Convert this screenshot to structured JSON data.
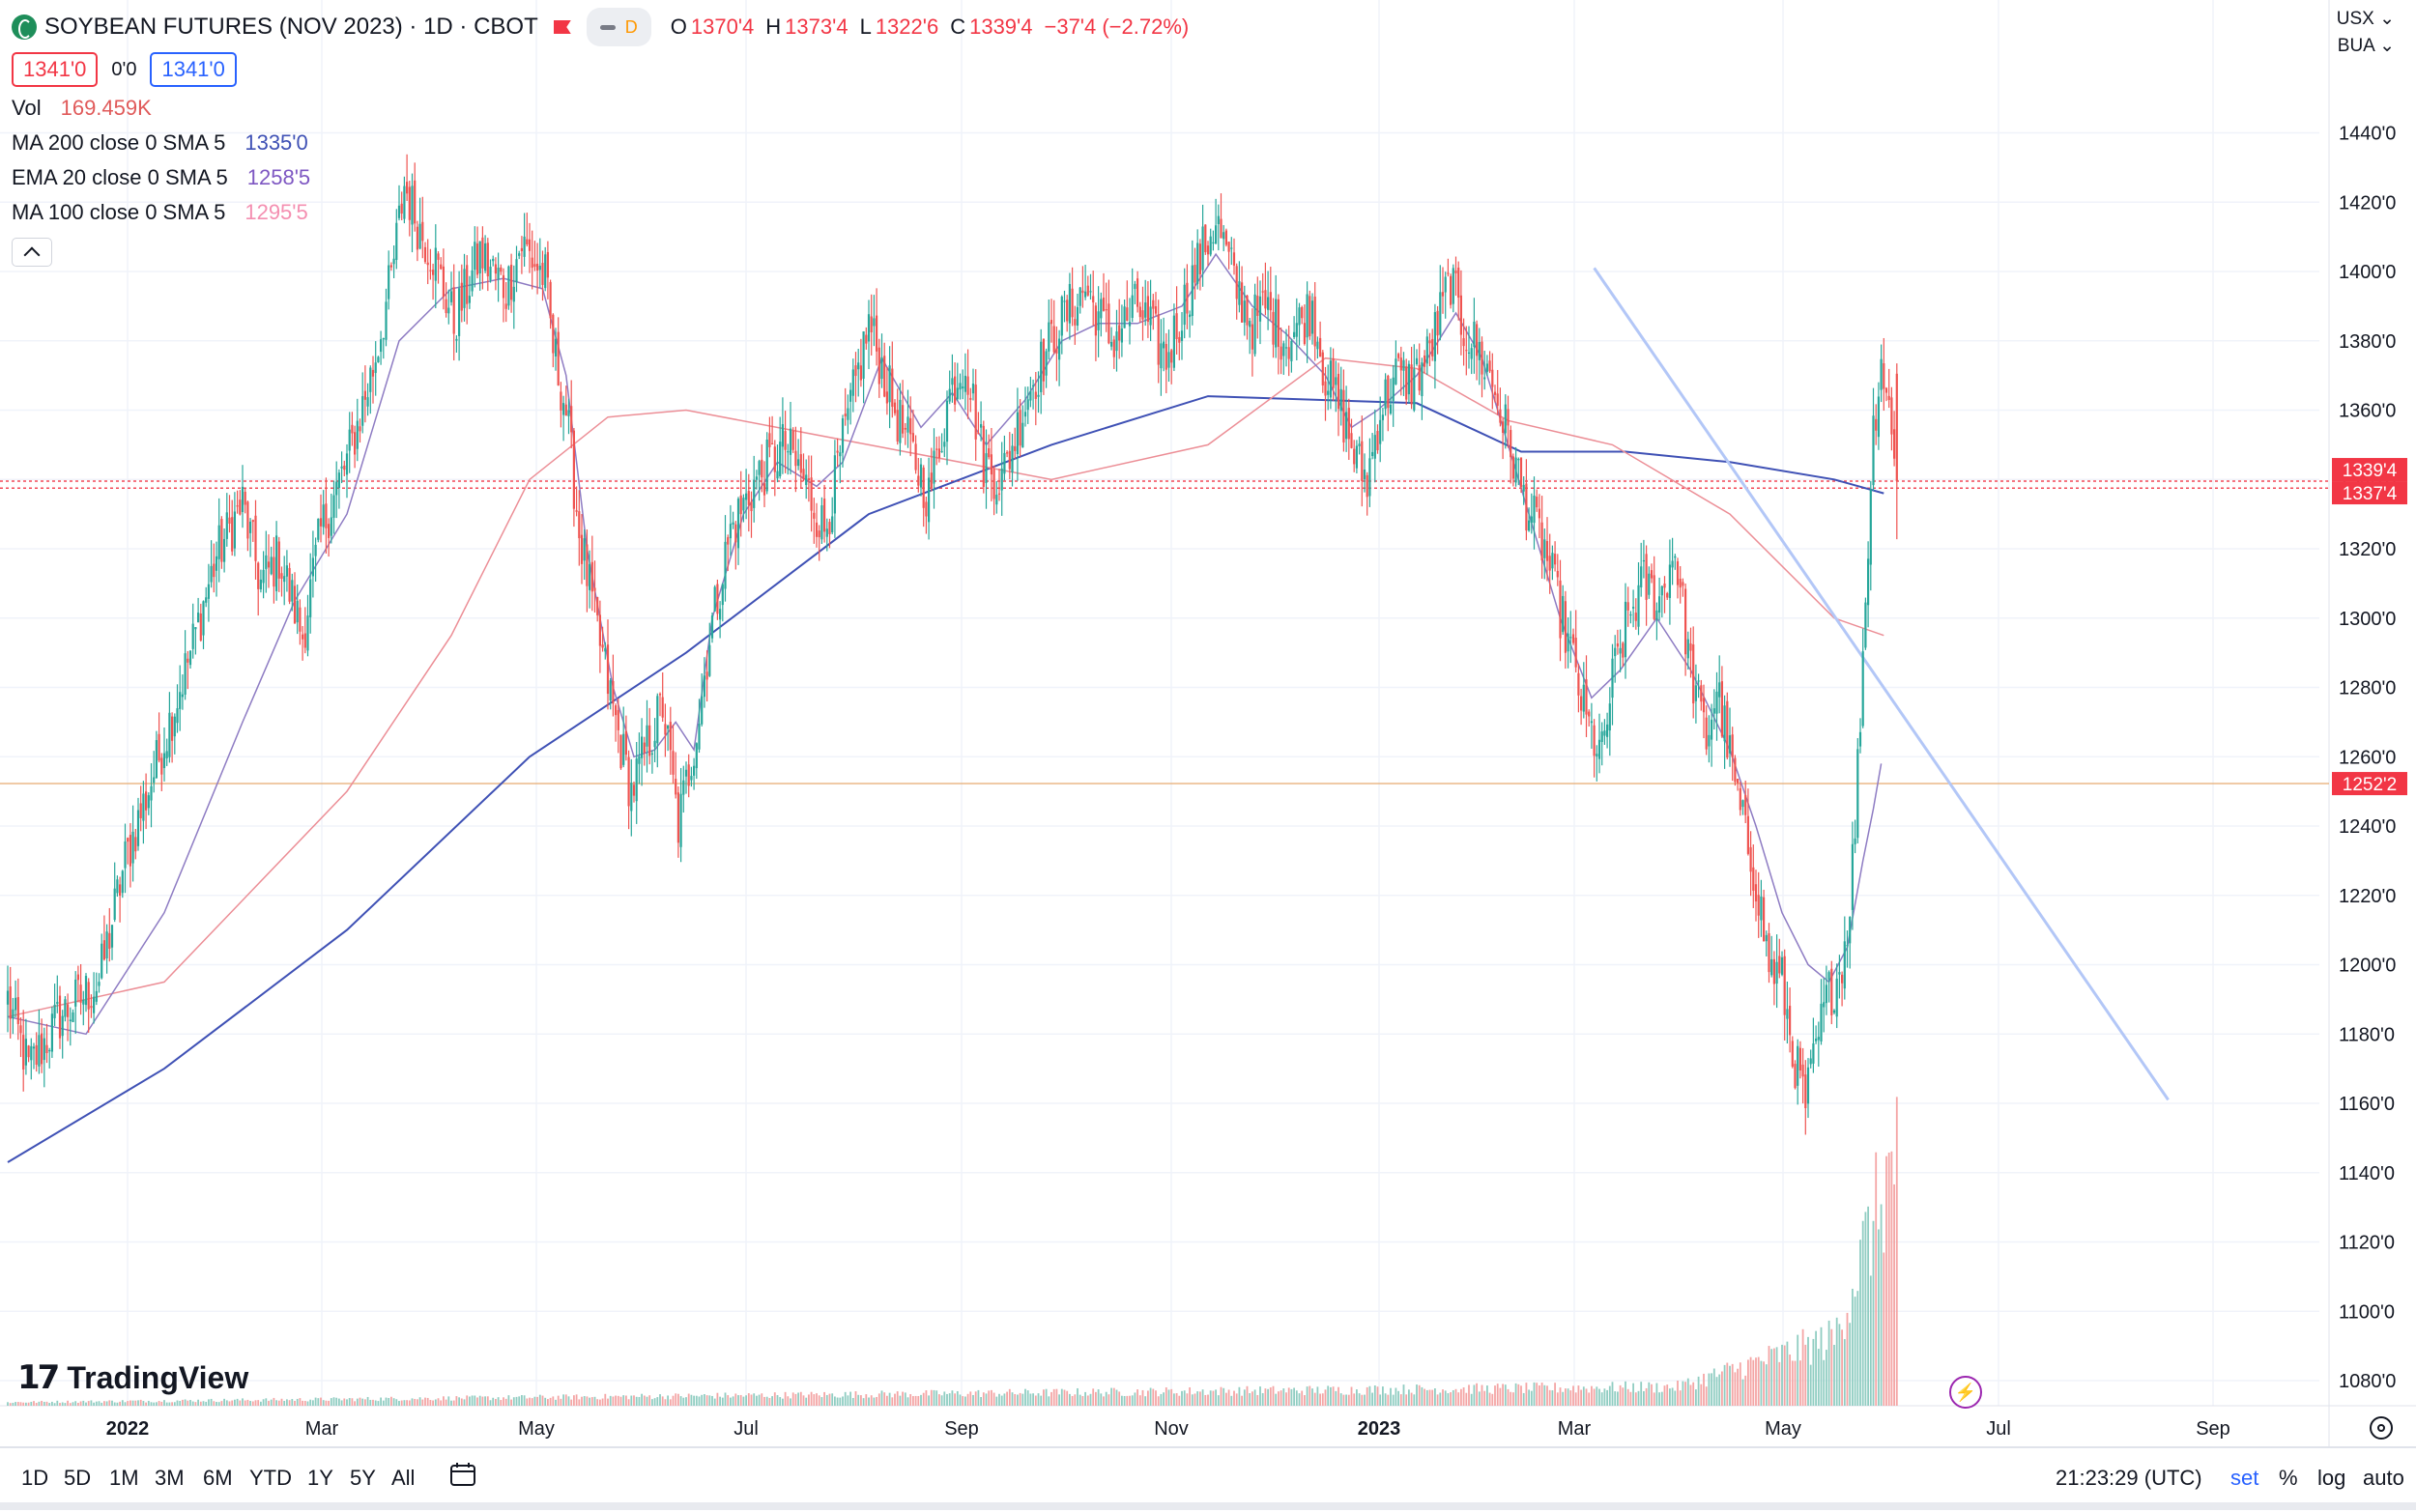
{
  "header": {
    "title": "SOYBEAN FUTURES (NOV 2023) · 1D · CBOT",
    "interval_badge": "D",
    "ohlc": [
      {
        "k": "O",
        "v": "1370'4"
      },
      {
        "k": "H",
        "v": "1373'4"
      },
      {
        "k": "L",
        "v": "1322'6"
      },
      {
        "k": "C",
        "v": "1339'4"
      },
      {
        "k": "",
        "v": "−37'4 (−2.72%)"
      }
    ],
    "sell_price": "1341'0",
    "spread": "0'0",
    "buy_price": "1341'0"
  },
  "indicators": [
    {
      "name": "Vol",
      "value": "169.459K",
      "color": "#e05a5a"
    },
    {
      "name": "MA 200 close 0 SMA 5",
      "value": "1335'0",
      "color": "#3f51b5"
    },
    {
      "name": "EMA 20 close 0 SMA 5",
      "value": "1258'5",
      "color": "#7e57c2"
    },
    {
      "name": "MA 100 close 0 SMA 5",
      "value": "1295'5",
      "color": "#f48fb1"
    }
  ],
  "top_right": {
    "currency": "USX",
    "unit": "BUA"
  },
  "price_labels": [
    {
      "value": "1339'4",
      "color": "#f23645"
    },
    {
      "value": "1337'4",
      "color": "#f23645"
    },
    {
      "value": "1252'2",
      "color": "#f23645"
    }
  ],
  "brand": "TradingView",
  "toolbar": {
    "timeframes": [
      "1D",
      "5D",
      "1M",
      "3M",
      "6M",
      "YTD",
      "1Y",
      "5Y",
      "All"
    ],
    "clock": "21:23:29 (UTC)",
    "set_label": "set",
    "percent_label": "%",
    "log_label": "log",
    "auto_label": "auto"
  },
  "chart_data": {
    "type": "candlestick",
    "y_axis": {
      "ticks": [
        "1080'0",
        "1100'0",
        "1120'0",
        "1140'0",
        "1160'0",
        "1180'0",
        "1200'0",
        "1220'0",
        "1240'0",
        "1260'0",
        "1280'0",
        "1300'0",
        "1320'0",
        "1340'0",
        "1360'0",
        "1380'0",
        "1400'0",
        "1420'0",
        "1440'0"
      ],
      "min": 1073,
      "max": 1460
    },
    "x_axis": {
      "ticks": [
        {
          "label": "2022",
          "bold": true
        },
        {
          "label": "Mar",
          "bold": false
        },
        {
          "label": "May",
          "bold": false
        },
        {
          "label": "Jul",
          "bold": false
        },
        {
          "label": "Sep",
          "bold": false
        },
        {
          "label": "Nov",
          "bold": false
        },
        {
          "label": "2023",
          "bold": true
        },
        {
          "label": "Mar",
          "bold": false
        },
        {
          "label": "May",
          "bold": false
        },
        {
          "label": "Jul",
          "bold": false
        },
        {
          "label": "Sep",
          "bold": false
        }
      ]
    },
    "close_path": [
      [
        0,
        1190
      ],
      [
        8,
        1170
      ],
      [
        20,
        1185
      ],
      [
        35,
        1195
      ],
      [
        45,
        1230
      ],
      [
        58,
        1260
      ],
      [
        70,
        1290
      ],
      [
        80,
        1318
      ],
      [
        90,
        1333
      ],
      [
        97,
        1310
      ],
      [
        104,
        1318
      ],
      [
        113,
        1295
      ],
      [
        120,
        1325
      ],
      [
        130,
        1345
      ],
      [
        140,
        1372
      ],
      [
        147,
        1398
      ],
      [
        152,
        1425
      ],
      [
        158,
        1412
      ],
      [
        163,
        1405
      ],
      [
        171,
        1385
      ],
      [
        181,
        1405
      ],
      [
        191,
        1395
      ],
      [
        197,
        1408
      ],
      [
        206,
        1398
      ],
      [
        209,
        1378
      ],
      [
        214,
        1360
      ],
      [
        219,
        1325
      ],
      [
        225,
        1300
      ],
      [
        233,
        1270
      ],
      [
        239,
        1250
      ],
      [
        246,
        1265
      ],
      [
        251,
        1275
      ],
      [
        257,
        1240
      ],
      [
        265,
        1272
      ],
      [
        269,
        1295
      ],
      [
        277,
        1325
      ],
      [
        287,
        1340
      ],
      [
        298,
        1350
      ],
      [
        305,
        1340
      ],
      [
        313,
        1325
      ],
      [
        320,
        1350
      ],
      [
        330,
        1385
      ],
      [
        340,
        1360
      ],
      [
        353,
        1335
      ],
      [
        361,
        1365
      ],
      [
        367,
        1375
      ],
      [
        374,
        1345
      ],
      [
        381,
        1340
      ],
      [
        391,
        1365
      ],
      [
        403,
        1385
      ],
      [
        413,
        1395
      ],
      [
        423,
        1380
      ],
      [
        433,
        1390
      ],
      [
        444,
        1375
      ],
      [
        455,
        1400
      ],
      [
        463,
        1415
      ],
      [
        471,
        1395
      ],
      [
        477,
        1385
      ],
      [
        482,
        1390
      ],
      [
        490,
        1380
      ],
      [
        500,
        1390
      ],
      [
        505,
        1370
      ],
      [
        511,
        1360
      ],
      [
        517,
        1345
      ],
      [
        521,
        1340
      ],
      [
        526,
        1360
      ],
      [
        532,
        1370
      ],
      [
        538,
        1368
      ],
      [
        544,
        1375
      ],
      [
        548,
        1385
      ],
      [
        553,
        1398
      ],
      [
        557,
        1385
      ],
      [
        563,
        1378
      ],
      [
        569,
        1368
      ],
      [
        575,
        1352
      ],
      [
        581,
        1335
      ],
      [
        589,
        1320
      ],
      [
        595,
        1302
      ],
      [
        599,
        1290
      ],
      [
        605,
        1270
      ],
      [
        611,
        1260
      ],
      [
        615,
        1282
      ],
      [
        621,
        1300
      ],
      [
        627,
        1310
      ],
      [
        633,
        1305
      ],
      [
        639,
        1320
      ],
      [
        645,
        1285
      ],
      [
        651,
        1265
      ],
      [
        655,
        1280
      ],
      [
        660,
        1260
      ],
      [
        665,
        1240
      ],
      [
        670,
        1225
      ],
      [
        675,
        1200
      ],
      [
        680,
        1195
      ],
      [
        684,
        1175
      ],
      [
        689,
        1160
      ],
      [
        693,
        1175
      ],
      [
        697,
        1190
      ],
      [
        702,
        1198
      ],
      [
        705,
        1210
      ],
      [
        708,
        1240
      ],
      [
        711,
        1290
      ],
      [
        715,
        1355
      ],
      [
        718,
        1375
      ],
      [
        721,
        1360
      ],
      [
        724,
        1339
      ]
    ],
    "volume_scale_max": 120,
    "ma200": [
      [
        0,
        1143
      ],
      [
        60,
        1170
      ],
      [
        130,
        1210
      ],
      [
        200,
        1260
      ],
      [
        260,
        1290
      ],
      [
        330,
        1330
      ],
      [
        400,
        1350
      ],
      [
        460,
        1364
      ],
      [
        540,
        1362
      ],
      [
        580,
        1348
      ],
      [
        620,
        1348
      ],
      [
        660,
        1345
      ],
      [
        700,
        1340
      ],
      [
        719,
        1336
      ]
    ],
    "ma100": [
      [
        0,
        1185
      ],
      [
        60,
        1195
      ],
      [
        130,
        1250
      ],
      [
        170,
        1295
      ],
      [
        200,
        1340
      ],
      [
        230,
        1358
      ],
      [
        260,
        1360
      ],
      [
        330,
        1350
      ],
      [
        400,
        1340
      ],
      [
        460,
        1350
      ],
      [
        505,
        1375
      ],
      [
        540,
        1372
      ],
      [
        575,
        1357
      ],
      [
        615,
        1350
      ],
      [
        660,
        1330
      ],
      [
        700,
        1300
      ],
      [
        719,
        1295
      ]
    ],
    "ema20": [
      [
        0,
        1185
      ],
      [
        30,
        1180
      ],
      [
        60,
        1215
      ],
      [
        90,
        1270
      ],
      [
        110,
        1305
      ],
      [
        130,
        1330
      ],
      [
        150,
        1380
      ],
      [
        170,
        1395
      ],
      [
        190,
        1398
      ],
      [
        205,
        1395
      ],
      [
        214,
        1370
      ],
      [
        222,
        1320
      ],
      [
        232,
        1280
      ],
      [
        240,
        1260
      ],
      [
        248,
        1262
      ],
      [
        256,
        1270
      ],
      [
        263,
        1262
      ],
      [
        270,
        1300
      ],
      [
        282,
        1330
      ],
      [
        295,
        1345
      ],
      [
        310,
        1338
      ],
      [
        320,
        1345
      ],
      [
        335,
        1375
      ],
      [
        350,
        1355
      ],
      [
        362,
        1365
      ],
      [
        375,
        1350
      ],
      [
        390,
        1363
      ],
      [
        404,
        1380
      ],
      [
        418,
        1385
      ],
      [
        433,
        1385
      ],
      [
        450,
        1390
      ],
      [
        463,
        1405
      ],
      [
        477,
        1390
      ],
      [
        490,
        1382
      ],
      [
        505,
        1370
      ],
      [
        515,
        1355
      ],
      [
        525,
        1360
      ],
      [
        540,
        1370
      ],
      [
        555,
        1388
      ],
      [
        565,
        1375
      ],
      [
        575,
        1350
      ],
      [
        585,
        1325
      ],
      [
        595,
        1300
      ],
      [
        607,
        1277
      ],
      [
        618,
        1285
      ],
      [
        632,
        1300
      ],
      [
        645,
        1285
      ],
      [
        660,
        1262
      ],
      [
        670,
        1240
      ],
      [
        680,
        1215
      ],
      [
        690,
        1200
      ],
      [
        698,
        1195
      ],
      [
        705,
        1205
      ],
      [
        711,
        1230
      ],
      [
        715,
        1245
      ],
      [
        718,
        1258
      ]
    ],
    "trendline": {
      "from": [
        608,
        1401
      ],
      "to": [
        828,
        1161
      ]
    },
    "horizontal_lines": [
      1339.5,
      1337.5,
      1252.25
    ],
    "last": {
      "open": 1370.5,
      "high": 1373.5,
      "low": 1322.75,
      "close": 1339.5
    },
    "series": [
      {
        "name": "MA 200 close 0 SMA 5",
        "color": "#3f51b5"
      },
      {
        "name": "MA 100 close 0 SMA 5",
        "color": "#ec8e96"
      },
      {
        "name": "EMA 20 close 0 SMA 5",
        "color": "#8e7cc3"
      }
    ]
  }
}
